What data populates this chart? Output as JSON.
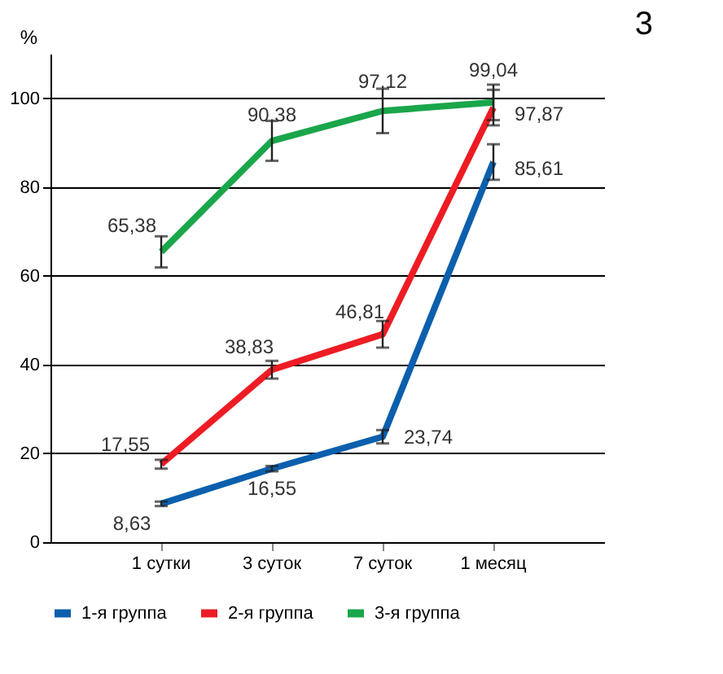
{
  "chart_data": {
    "type": "line",
    "ylabel": "%",
    "categories": [
      "1 сутки",
      "3 суток",
      "7 суток",
      "1 месяц"
    ],
    "series": [
      {
        "name": "1-я группа",
        "color": "#0b5fad",
        "values": [
          8.63,
          16.55,
          23.74,
          85.61
        ],
        "errors": [
          0.5,
          0.6,
          1.5,
          4
        ],
        "value_labels": [
          "8,63",
          "16,55",
          "23,74",
          "85,61"
        ]
      },
      {
        "name": "2-я группа",
        "color": "#ed1c24",
        "values": [
          17.55,
          38.83,
          46.81,
          97.87
        ],
        "errors": [
          1,
          2,
          3,
          4
        ],
        "value_labels": [
          "17,55",
          "38,83",
          "46,81",
          "97,87"
        ]
      },
      {
        "name": "3-я группа",
        "color": "#1aa64a",
        "values": [
          65.38,
          90.38,
          97.12,
          99.04
        ],
        "errors": [
          3.5,
          4.5,
          5,
          4
        ],
        "value_labels": [
          "65,38",
          "90,38",
          "97,12",
          "99,04"
        ]
      }
    ],
    "ylim": [
      0,
      110
    ],
    "yticks": [
      0,
      20,
      40,
      60,
      80,
      100
    ],
    "grid": "y",
    "legend": "bottom",
    "annotations": [
      "3"
    ]
  }
}
